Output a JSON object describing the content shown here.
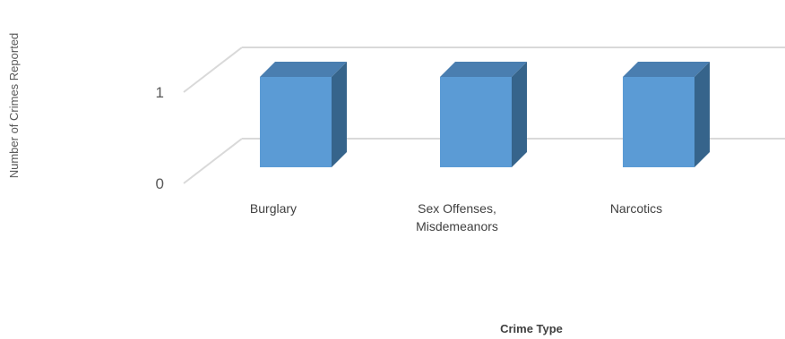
{
  "chart_data": {
    "type": "bar",
    "title": "",
    "xlabel": "Crime Type",
    "ylabel": "Number of Crimes Reported",
    "categories": [
      [
        "Burglary"
      ],
      [
        "Sex Offenses,",
        "Misdemeanors"
      ],
      [
        "Narcotics"
      ]
    ],
    "values": [
      1,
      1,
      1
    ],
    "ylim": [
      0,
      1
    ],
    "yticks": [
      "0",
      "1"
    ],
    "grid": true,
    "bar_colors": {
      "front": "#5b9bd5",
      "top": "#4a7eb0",
      "side": "#36648b"
    },
    "grid_color": "#d9d9d9"
  }
}
